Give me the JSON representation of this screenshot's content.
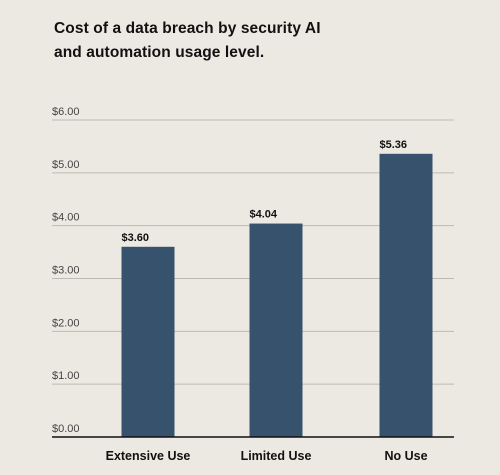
{
  "chart_data": {
    "type": "bar",
    "title_lines": [
      "Cost of a data breach by security AI",
      "and automation usage level."
    ],
    "categories": [
      "Extensive Use",
      "Limited Use",
      "No Use"
    ],
    "values": [
      3.6,
      4.04,
      5.36
    ],
    "value_labels": [
      "$3.60",
      "$4.04",
      "$5.36"
    ],
    "ylim": [
      0,
      6
    ],
    "yticks": [
      0,
      1,
      2,
      3,
      4,
      5,
      6
    ],
    "ytick_labels": [
      "$0.00",
      "$1.00",
      "$2.00",
      "$3.00",
      "$4.00",
      "$5.00",
      "$6.00"
    ],
    "grid": true,
    "bar_color": "#37526c",
    "grid_color": "#bdbab4",
    "axis_color": "#111111",
    "xlabel": "",
    "ylabel": ""
  }
}
